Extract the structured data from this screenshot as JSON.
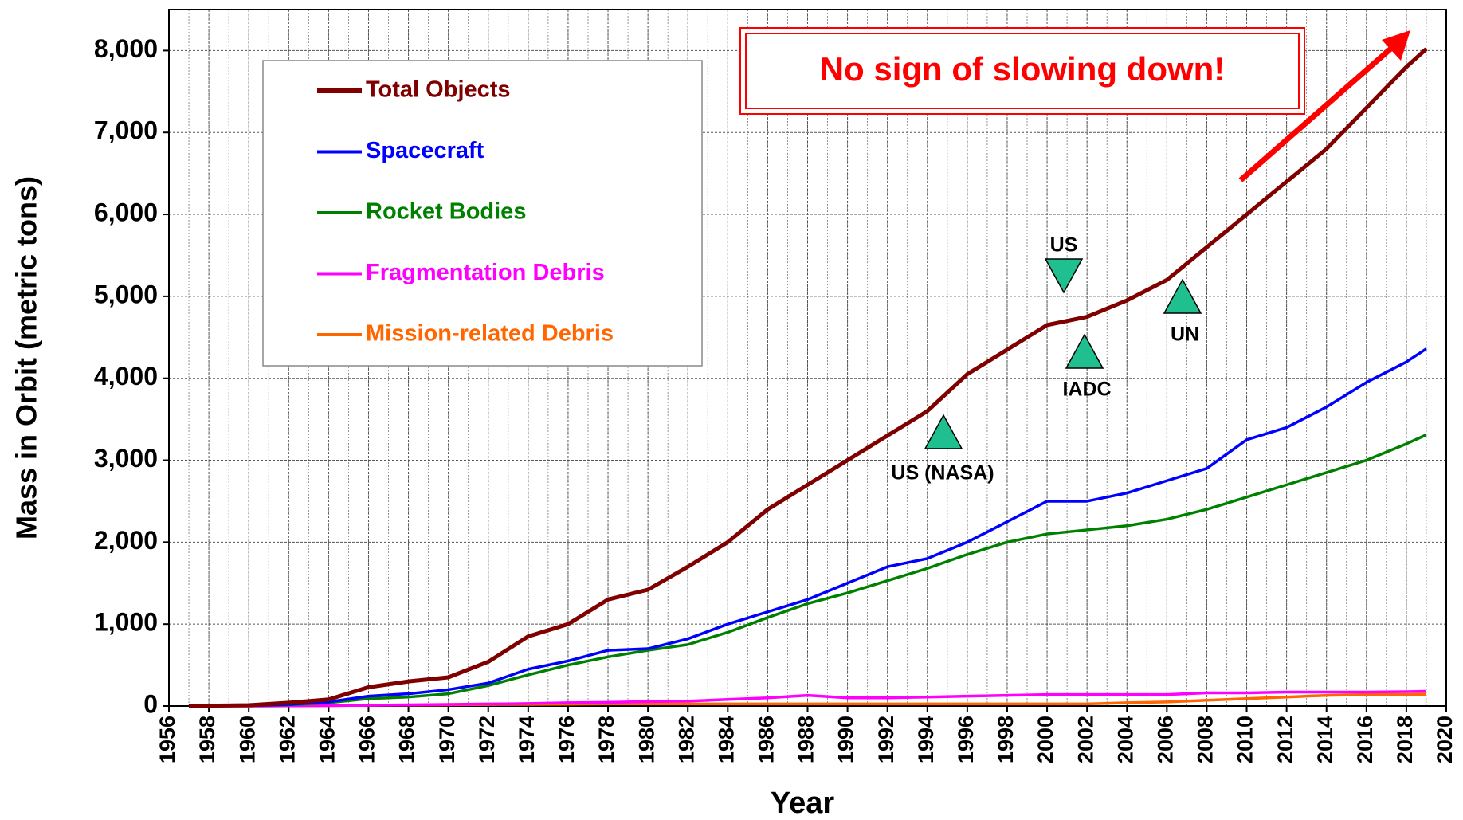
{
  "chart_data": {
    "type": "line",
    "x_label": "Year",
    "y_label": "Mass in Orbit (metric tons)",
    "annotation": "No sign of slowing down!",
    "markers": [
      "US (NASA)",
      "US",
      "IADC",
      "UN"
    ],
    "x": [
      1957,
      1960,
      1962,
      1964,
      1966,
      1968,
      1970,
      1972,
      1974,
      1976,
      1978,
      1980,
      1982,
      1984,
      1986,
      1988,
      1990,
      1992,
      1994,
      1996,
      1998,
      2000,
      2002,
      2004,
      2006,
      2008,
      2010,
      2012,
      2014,
      2016,
      2018,
      2019
    ],
    "series": [
      {
        "name": "Total Objects",
        "color": "#800000",
        "values": [
          0,
          10,
          40,
          80,
          230,
          300,
          350,
          540,
          850,
          1000,
          1300,
          1420,
          1700,
          2000,
          2400,
          2700,
          3000,
          3300,
          3600,
          4050,
          4350,
          4650,
          4750,
          4950,
          5200,
          5600,
          6000,
          6400,
          6800,
          7300,
          7800,
          8020
        ]
      },
      {
        "name": "Spacecraft",
        "color": "#0000ff",
        "values": [
          0,
          5,
          20,
          50,
          120,
          150,
          200,
          280,
          450,
          550,
          680,
          700,
          820,
          1000,
          1150,
          1300,
          1500,
          1700,
          1800,
          2000,
          2250,
          2500,
          2500,
          2600,
          2750,
          2900,
          3250,
          3400,
          3650,
          3950,
          4200,
          4360
        ]
      },
      {
        "name": "Rocket Bodies",
        "color": "#008000",
        "values": [
          0,
          5,
          15,
          40,
          90,
          110,
          150,
          250,
          380,
          500,
          600,
          680,
          750,
          900,
          1080,
          1250,
          1380,
          1530,
          1680,
          1850,
          2000,
          2100,
          2150,
          2200,
          2280,
          2400,
          2550,
          2700,
          2850,
          3000,
          3200,
          3310
        ]
      },
      {
        "name": "Fragmentation Debris",
        "color": "#ff00ff",
        "values": [
          0,
          0,
          2,
          5,
          10,
          15,
          20,
          25,
          30,
          40,
          45,
          55,
          60,
          80,
          100,
          130,
          100,
          100,
          110,
          120,
          130,
          140,
          140,
          140,
          140,
          160,
          160,
          170,
          170,
          170,
          175,
          180
        ]
      },
      {
        "name": "Mission-related Debris",
        "color": "#ff6600",
        "values": [
          0,
          0,
          2,
          5,
          10,
          12,
          15,
          18,
          20,
          22,
          25,
          25,
          25,
          25,
          25,
          25,
          25,
          25,
          25,
          25,
          25,
          25,
          25,
          40,
          50,
          70,
          90,
          110,
          130,
          140,
          140,
          145
        ]
      }
    ],
    "xlim": [
      1956,
      2020
    ],
    "xticks": [
      1956,
      1958,
      1960,
      1962,
      1964,
      1966,
      1968,
      1970,
      1972,
      1974,
      1976,
      1978,
      1980,
      1982,
      1984,
      1986,
      1988,
      1990,
      1992,
      1994,
      1996,
      1998,
      2000,
      2002,
      2004,
      2006,
      2008,
      2010,
      2012,
      2014,
      2016,
      2018,
      2020
    ],
    "ylim": [
      0,
      8500
    ],
    "yticks": [
      0,
      {
        "value": 1000,
        "label": "1,000"
      },
      {
        "value": 2000,
        "label": "2,000"
      },
      {
        "value": 3000,
        "label": "3,000"
      },
      {
        "value": 4000,
        "label": "4,000"
      },
      {
        "value": 5000,
        "label": "5,000"
      },
      {
        "value": 6000,
        "label": "6,000"
      },
      {
        "value": 7000,
        "label": "7,000"
      },
      {
        "value": 8000,
        "label": "8,000"
      }
    ],
    "grid": true,
    "legend": "upper left"
  }
}
